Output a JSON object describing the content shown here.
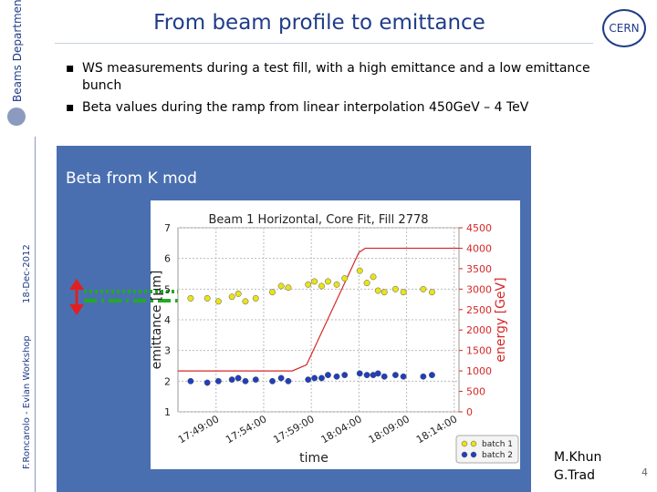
{
  "header": {
    "title": "From beam profile to emittance",
    "logo": "CERN",
    "department": "Beams Department"
  },
  "bullets": [
    "WS measurements during a test fill, with a high emittance and a low emittance bunch",
    "Beta values during the ramp from linear interpolation 450GeV – 4 TeV"
  ],
  "sidebar": {
    "author": "F.Roncarolo - Evian Workshop",
    "date": "18-Dec-2012"
  },
  "box_label": "Beta from K mod",
  "credits": [
    "M.Khun",
    "G.Trad"
  ],
  "page_number": "4",
  "chart_data": {
    "type": "scatter",
    "title": "Beam 1 Horizontal, Core Fit, Fill 2778",
    "x_label": "time",
    "y_label": "emittance [μm]",
    "y2_label": "energy [GeV]",
    "xlim": [
      "17:45:00",
      "18:14:30"
    ],
    "xticks": [
      "17:49:00",
      "17:54:00",
      "17:59:00",
      "18:04:00",
      "18:09:00",
      "18:14:00"
    ],
    "ylim": [
      1,
      7
    ],
    "yticks": [
      1,
      2,
      3,
      4,
      5,
      6,
      7
    ],
    "y2lim": [
      0,
      4500
    ],
    "y2ticks": [
      0,
      500,
      1000,
      1500,
      2000,
      2500,
      3000,
      3500,
      4000,
      4500
    ],
    "grid": true,
    "legend": "lower right",
    "series": [
      {
        "name": "batch 1",
        "color": "#e8e31a",
        "x": [
          "17:46:20",
          "17:48:05",
          "17:49:15",
          "17:50:40",
          "17:51:20",
          "17:52:05",
          "17:53:10",
          "17:54:55",
          "17:55:50",
          "17:56:35",
          "17:58:40",
          "17:59:20",
          "18:00:05",
          "18:00:45",
          "18:01:40",
          "18:02:30",
          "18:04:05",
          "18:04:50",
          "18:05:30",
          "18:06:00",
          "18:06:40",
          "18:07:50",
          "18:08:40",
          "18:10:45",
          "18:11:40"
        ],
        "values": [
          4.7,
          4.7,
          4.6,
          4.75,
          4.85,
          4.6,
          4.7,
          4.9,
          5.1,
          5.05,
          5.15,
          5.25,
          5.1,
          5.25,
          5.15,
          5.35,
          5.6,
          5.2,
          5.4,
          4.95,
          4.9,
          5.0,
          4.9,
          5.0,
          4.9
        ]
      },
      {
        "name": "batch 2",
        "color": "#1f3fbf",
        "x": [
          "17:46:20",
          "17:48:05",
          "17:49:15",
          "17:50:40",
          "17:51:20",
          "17:52:05",
          "17:53:10",
          "17:54:55",
          "17:55:50",
          "17:56:35",
          "17:58:40",
          "17:59:20",
          "18:00:05",
          "18:00:45",
          "18:01:40",
          "18:02:30",
          "18:04:05",
          "18:04:50",
          "18:05:30",
          "18:06:00",
          "18:06:40",
          "18:07:50",
          "18:08:40",
          "18:10:45",
          "18:11:40"
        ],
        "values": [
          2.0,
          1.95,
          2.0,
          2.05,
          2.1,
          2.0,
          2.05,
          2.0,
          2.1,
          2.0,
          2.05,
          2.1,
          2.1,
          2.2,
          2.15,
          2.2,
          2.25,
          2.2,
          2.2,
          2.25,
          2.15,
          2.2,
          2.15,
          2.15,
          2.2
        ]
      }
    ],
    "energy": {
      "color": "#d62728",
      "axis": "y2",
      "x": [
        "17:45:00",
        "17:57:00",
        "17:58:30",
        "18:04:00",
        "18:04:40",
        "18:14:30"
      ],
      "values": [
        1000,
        1000,
        1150,
        3900,
        4000,
        4000
      ]
    }
  }
}
